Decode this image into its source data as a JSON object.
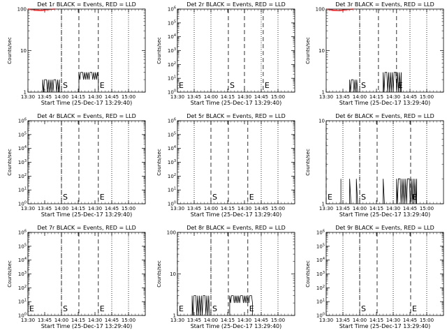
{
  "chart_data": [
    {
      "type": "line",
      "title": "Det 1r BLACK = Events, RED = LLD",
      "xlabel": "Start Time (25-Dec-17 13:29:40)",
      "ylabel": "Counts/sec",
      "yscale": "log",
      "ylim": [
        1,
        100
      ],
      "yticks": [
        {
          "v": 1,
          "label": "1"
        },
        {
          "v": 10,
          "label": "10"
        },
        {
          "v": 100,
          "label": "100"
        }
      ],
      "xlim": [
        13.5,
        15.25
      ],
      "xticks": [
        {
          "v": 13.5,
          "label": "13:30"
        },
        {
          "v": 13.75,
          "label": "13:45"
        },
        {
          "v": 14.0,
          "label": "14:00"
        },
        {
          "v": 14.25,
          "label": "14:15"
        },
        {
          "v": 14.5,
          "label": "14:30"
        },
        {
          "v": 14.75,
          "label": "14:45"
        },
        {
          "v": 15.0,
          "label": "15:00"
        }
      ],
      "markers": [
        {
          "label": "S",
          "x": 14.0,
          "style": "dashed"
        },
        {
          "label": "",
          "x": 14.26,
          "style": "dashed"
        },
        {
          "label": "E",
          "x": 14.55,
          "style": "dashed"
        },
        {
          "label": "",
          "x": 14.0,
          "style": "dotted"
        },
        {
          "label": "",
          "x": 14.75,
          "style": "dotted"
        },
        {
          "label": "",
          "x": 15.0,
          "style": "dotted"
        }
      ],
      "series": [
        {
          "name": "Events",
          "color": "#000000",
          "segments": [
            [
              13.72,
              13.97,
              1,
              2
            ],
            [
              14.26,
              14.55,
              2,
              3
            ]
          ]
        },
        {
          "name": "LLD",
          "color": "#ff0000",
          "x": [
            13.5,
            13.55,
            13.6,
            13.65,
            13.7,
            13.75,
            13.8,
            13.85,
            13.9
          ],
          "y": [
            100,
            98,
            95,
            94,
            93,
            96,
            97,
            99,
            100
          ]
        }
      ]
    },
    {
      "type": "line",
      "title": "Det 2r BLACK = Events, RED = LLD",
      "xlabel": "Start Time (25-Dec-17 13:29:40)",
      "ylabel": "Counts/sec",
      "yscale": "log",
      "ylim": [
        1,
        1000000
      ],
      "yticks": [
        {
          "v": 1,
          "label": "10^0"
        },
        {
          "v": 10,
          "label": "10^1"
        },
        {
          "v": 100,
          "label": "10^2"
        },
        {
          "v": 1000,
          "label": "10^3"
        },
        {
          "v": 10000,
          "label": "10^4"
        },
        {
          "v": 100000,
          "label": "10^5"
        },
        {
          "v": 1000000,
          "label": "10^6"
        }
      ],
      "xlim": [
        13.5,
        15.25
      ],
      "xticks": [
        {
          "v": 13.5,
          "label": "13:30"
        },
        {
          "v": 13.75,
          "label": "13:45"
        },
        {
          "v": 14.0,
          "label": "14:00"
        },
        {
          "v": 14.25,
          "label": "14:15"
        },
        {
          "v": 14.5,
          "label": "14:30"
        },
        {
          "v": 14.75,
          "label": "14:45"
        },
        {
          "v": 15.0,
          "label": "15:00"
        }
      ],
      "markers": [
        {
          "label": "E",
          "x": 13.5,
          "style": "dashed"
        },
        {
          "label": "S",
          "x": 14.26,
          "style": "dashed"
        },
        {
          "label": "",
          "x": 14.5,
          "style": "dashed"
        },
        {
          "label": "E",
          "x": 14.78,
          "style": "dashed"
        },
        {
          "label": "",
          "x": 13.75,
          "style": "dotted"
        },
        {
          "label": "",
          "x": 14.0,
          "style": "dotted"
        },
        {
          "label": "",
          "x": 14.75,
          "style": "dotted"
        },
        {
          "label": "",
          "x": 15.0,
          "style": "dotted"
        }
      ],
      "series": []
    },
    {
      "type": "line",
      "title": "Det 3r BLACK = Events, RED = LLD",
      "xlabel": "Start Time (25-Dec-17 13:29:40)",
      "ylabel": "Counts/sec",
      "yscale": "log",
      "ylim": [
        1,
        100
      ],
      "yticks": [
        {
          "v": 1,
          "label": "1"
        },
        {
          "v": 10,
          "label": "10"
        },
        {
          "v": 100,
          "label": "100"
        }
      ],
      "xlim": [
        13.5,
        15.25
      ],
      "xticks": [
        {
          "v": 13.5,
          "label": "13:30"
        },
        {
          "v": 13.75,
          "label": "13:45"
        },
        {
          "v": 14.0,
          "label": "14:00"
        },
        {
          "v": 14.25,
          "label": "14:15"
        },
        {
          "v": 14.5,
          "label": "14:30"
        },
        {
          "v": 14.75,
          "label": "14:45"
        },
        {
          "v": 15.0,
          "label": "15:00"
        }
      ],
      "markers": [
        {
          "label": "S",
          "x": 14.0,
          "style": "dashed"
        },
        {
          "label": "",
          "x": 14.28,
          "style": "dashed"
        },
        {
          "label": "E",
          "x": 14.55,
          "style": "dashed"
        },
        {
          "label": "",
          "x": 14.0,
          "style": "dotted"
        },
        {
          "label": "",
          "x": 14.75,
          "style": "dotted"
        },
        {
          "label": "",
          "x": 15.0,
          "style": "dotted"
        }
      ],
      "series": [
        {
          "name": "Events",
          "color": "#000000",
          "segments": [
            [
              13.85,
              13.97,
              1,
              2
            ],
            [
              14.35,
              14.62,
              1,
              3
            ]
          ]
        },
        {
          "name": "LLD",
          "color": "#ff0000",
          "x": [
            13.5,
            13.55,
            13.6,
            13.65,
            13.7,
            13.75,
            13.8,
            13.85,
            13.9
          ],
          "y": [
            100,
            97,
            94,
            93,
            92,
            95,
            97,
            98,
            100
          ]
        }
      ]
    },
    {
      "type": "line",
      "title": "Det 4r BLACK = Events, RED = LLD",
      "xlabel": "Start Time (25-Dec-17 13:29:40)",
      "ylabel": "Counts/sec",
      "yscale": "log",
      "ylim": [
        1,
        1000000
      ],
      "yticks": [
        {
          "v": 1,
          "label": "10^0"
        },
        {
          "v": 10,
          "label": "10^1"
        },
        {
          "v": 100,
          "label": "10^2"
        },
        {
          "v": 1000,
          "label": "10^3"
        },
        {
          "v": 10000,
          "label": "10^4"
        },
        {
          "v": 100000,
          "label": "10^5"
        },
        {
          "v": 1000000,
          "label": "10^6"
        }
      ],
      "xlim": [
        13.5,
        15.25
      ],
      "xticks": [
        {
          "v": 13.5,
          "label": "13:30"
        },
        {
          "v": 13.75,
          "label": "13:45"
        },
        {
          "v": 14.0,
          "label": "14:00"
        },
        {
          "v": 14.25,
          "label": "14:15"
        },
        {
          "v": 14.5,
          "label": "14:30"
        },
        {
          "v": 14.75,
          "label": "14:45"
        },
        {
          "v": 15.0,
          "label": "15:00"
        }
      ],
      "markers": [
        {
          "label": "",
          "x": 13.5,
          "style": "dashed"
        },
        {
          "label": "S",
          "x": 14.0,
          "style": "dashed"
        },
        {
          "label": "",
          "x": 14.26,
          "style": "dashed"
        },
        {
          "label": "E",
          "x": 14.55,
          "style": "dashed"
        },
        {
          "label": "",
          "x": 14.0,
          "style": "dotted"
        },
        {
          "label": "",
          "x": 14.75,
          "style": "dotted"
        },
        {
          "label": "",
          "x": 15.0,
          "style": "dotted"
        }
      ],
      "series": []
    },
    {
      "type": "line",
      "title": "Det 5r BLACK = Events, RED = LLD",
      "xlabel": "Start Time (25-Dec-17 13:29:40)",
      "ylabel": "Counts/sec",
      "yscale": "log",
      "ylim": [
        1,
        1000000
      ],
      "yticks": [
        {
          "v": 1,
          "label": "10^0"
        },
        {
          "v": 10,
          "label": "10^1"
        },
        {
          "v": 100,
          "label": "10^2"
        },
        {
          "v": 1000,
          "label": "10^3"
        },
        {
          "v": 10000,
          "label": "10^4"
        },
        {
          "v": 100000,
          "label": "10^5"
        },
        {
          "v": 1000000,
          "label": "10^6"
        }
      ],
      "xlim": [
        13.5,
        15.25
      ],
      "xticks": [
        {
          "v": 13.5,
          "label": "13:30"
        },
        {
          "v": 13.75,
          "label": "13:45"
        },
        {
          "v": 14.0,
          "label": "14:00"
        },
        {
          "v": 14.25,
          "label": "14:15"
        },
        {
          "v": 14.5,
          "label": "14:30"
        },
        {
          "v": 14.75,
          "label": "14:45"
        },
        {
          "v": 15.0,
          "label": "15:00"
        }
      ],
      "markers": [
        {
          "label": "S",
          "x": 14.0,
          "style": "dashed"
        },
        {
          "label": "",
          "x": 14.26,
          "style": "dashed"
        },
        {
          "label": "E",
          "x": 14.55,
          "style": "dashed"
        },
        {
          "label": "",
          "x": 13.75,
          "style": "dotted"
        },
        {
          "label": "",
          "x": 14.75,
          "style": "dotted"
        },
        {
          "label": "",
          "x": 15.0,
          "style": "dotted"
        }
      ],
      "series": []
    },
    {
      "type": "line",
      "title": "Det 6r BLACK = Events, RED = LLD",
      "xlabel": "Start Time (25-Dec-17 13:29:40)",
      "ylabel": "Counts/sec",
      "yscale": "log",
      "ylim": [
        1,
        10
      ],
      "yticks": [
        {
          "v": 1,
          "label": "1"
        },
        {
          "v": 10,
          "label": "10"
        }
      ],
      "xlim": [
        13.5,
        15.25
      ],
      "xticks": [
        {
          "v": 13.5,
          "label": "13:30"
        },
        {
          "v": 13.75,
          "label": "13:45"
        },
        {
          "v": 14.0,
          "label": "14:00"
        },
        {
          "v": 14.25,
          "label": "14:15"
        },
        {
          "v": 14.5,
          "label": "14:30"
        },
        {
          "v": 14.75,
          "label": "14:45"
        },
        {
          "v": 15.0,
          "label": "15:00"
        }
      ],
      "markers": [
        {
          "label": "E",
          "x": 13.5,
          "style": "dashed"
        },
        {
          "label": "S",
          "x": 14.0,
          "style": "dashed"
        },
        {
          "label": "",
          "x": 14.26,
          "style": "dashed"
        },
        {
          "label": "E",
          "x": 14.76,
          "style": "dashed"
        },
        {
          "label": "",
          "x": 13.75,
          "style": "dotted"
        },
        {
          "label": "",
          "x": 14.0,
          "style": "dotted"
        },
        {
          "label": "",
          "x": 14.5,
          "style": "dotted"
        },
        {
          "label": "",
          "x": 15.0,
          "style": "dotted"
        }
      ],
      "series": [
        {
          "name": "Events",
          "color": "#000000",
          "segments": [
            [
              13.72,
              13.72,
              1,
              2
            ],
            [
              13.85,
              13.87,
              1,
              2
            ],
            [
              13.95,
              13.97,
              1,
              2
            ],
            [
              14.35,
              14.37,
              1,
              2
            ],
            [
              14.55,
              14.85,
              1,
              2
            ]
          ]
        }
      ]
    },
    {
      "type": "line",
      "title": "Det 7r BLACK = Events, RED = LLD",
      "xlabel": "Start Time (25-Dec-17 13:29:40)",
      "ylabel": "Counts/sec",
      "yscale": "log",
      "ylim": [
        1,
        1000000
      ],
      "yticks": [
        {
          "v": 1,
          "label": "10^0"
        },
        {
          "v": 10,
          "label": "10^1"
        },
        {
          "v": 100,
          "label": "10^2"
        },
        {
          "v": 1000,
          "label": "10^3"
        },
        {
          "v": 10000,
          "label": "10^4"
        },
        {
          "v": 100000,
          "label": "10^5"
        },
        {
          "v": 1000000,
          "label": "10^6"
        }
      ],
      "xlim": [
        13.5,
        15.25
      ],
      "xticks": [
        {
          "v": 13.5,
          "label": "13:30"
        },
        {
          "v": 13.75,
          "label": "13:45"
        },
        {
          "v": 14.0,
          "label": "14:00"
        },
        {
          "v": 14.25,
          "label": "14:15"
        },
        {
          "v": 14.5,
          "label": "14:30"
        },
        {
          "v": 14.75,
          "label": "14:45"
        },
        {
          "v": 15.0,
          "label": "15:00"
        }
      ],
      "markers": [
        {
          "label": "E",
          "x": 13.5,
          "style": "dashed"
        },
        {
          "label": "S",
          "x": 14.0,
          "style": "dashed"
        },
        {
          "label": "",
          "x": 14.26,
          "style": "dashed"
        },
        {
          "label": "E",
          "x": 14.55,
          "style": "dashed"
        },
        {
          "label": "",
          "x": 14.0,
          "style": "dotted"
        },
        {
          "label": "",
          "x": 14.75,
          "style": "dotted"
        },
        {
          "label": "",
          "x": 15.0,
          "style": "dotted"
        }
      ],
      "series": []
    },
    {
      "type": "line",
      "title": "Det 8r BLACK = Events, RED = LLD",
      "xlabel": "Start Time (25-Dec-17 13:29:40)",
      "ylabel": "Counts/sec",
      "yscale": "log",
      "ylim": [
        1,
        100
      ],
      "yticks": [
        {
          "v": 1,
          "label": "1"
        },
        {
          "v": 10,
          "label": "10"
        },
        {
          "v": 100,
          "label": "100"
        }
      ],
      "xlim": [
        13.5,
        15.25
      ],
      "xticks": [
        {
          "v": 13.5,
          "label": "13:30"
        },
        {
          "v": 13.75,
          "label": "13:45"
        },
        {
          "v": 14.0,
          "label": "14:00"
        },
        {
          "v": 14.25,
          "label": "14:15"
        },
        {
          "v": 14.5,
          "label": "14:30"
        },
        {
          "v": 14.75,
          "label": "14:45"
        },
        {
          "v": 15.0,
          "label": "15:00"
        }
      ],
      "markers": [
        {
          "label": "E",
          "x": 13.5,
          "style": "dashed"
        },
        {
          "label": "S",
          "x": 14.0,
          "style": "dashed"
        },
        {
          "label": "",
          "x": 14.26,
          "style": "dashed"
        },
        {
          "label": "E",
          "x": 14.55,
          "style": "dashed"
        },
        {
          "label": "",
          "x": 14.0,
          "style": "dotted"
        },
        {
          "label": "",
          "x": 14.75,
          "style": "dotted"
        },
        {
          "label": "",
          "x": 15.0,
          "style": "dotted"
        }
      ],
      "series": [
        {
          "name": "Events",
          "color": "#000000",
          "segments": [
            [
              13.72,
              13.98,
              1,
              3
            ],
            [
              14.28,
              14.62,
              2,
              3
            ]
          ]
        }
      ]
    },
    {
      "type": "line",
      "title": "Det 9r BLACK = Events, RED = LLD",
      "xlabel": "Start Time (25-Dec-17 13:29:40)",
      "ylabel": "Counts/sec",
      "yscale": "log",
      "ylim": [
        1,
        1000000
      ],
      "yticks": [
        {
          "v": 1,
          "label": "10^0"
        },
        {
          "v": 10,
          "label": "10^1"
        },
        {
          "v": 100,
          "label": "10^2"
        },
        {
          "v": 1000,
          "label": "10^3"
        },
        {
          "v": 10000,
          "label": "10^4"
        },
        {
          "v": 100000,
          "label": "10^5"
        },
        {
          "v": 1000000,
          "label": "10^6"
        }
      ],
      "xlim": [
        13.5,
        15.25
      ],
      "xticks": [
        {
          "v": 13.5,
          "label": "13:30"
        },
        {
          "v": 13.75,
          "label": "13:45"
        },
        {
          "v": 14.0,
          "label": "14:00"
        },
        {
          "v": 14.25,
          "label": "14:15"
        },
        {
          "v": 14.5,
          "label": "14:30"
        },
        {
          "v": 14.75,
          "label": "14:45"
        },
        {
          "v": 15.0,
          "label": "15:00"
        }
      ],
      "markers": [
        {
          "label": "S",
          "x": 14.0,
          "style": "dashed"
        },
        {
          "label": "",
          "x": 14.26,
          "style": "dashed"
        },
        {
          "label": "E",
          "x": 14.76,
          "style": "dashed"
        },
        {
          "label": "",
          "x": 13.75,
          "style": "dotted"
        },
        {
          "label": "",
          "x": 14.0,
          "style": "dotted"
        },
        {
          "label": "",
          "x": 14.5,
          "style": "dotted"
        },
        {
          "label": "",
          "x": 15.0,
          "style": "dotted"
        }
      ],
      "series": []
    }
  ]
}
